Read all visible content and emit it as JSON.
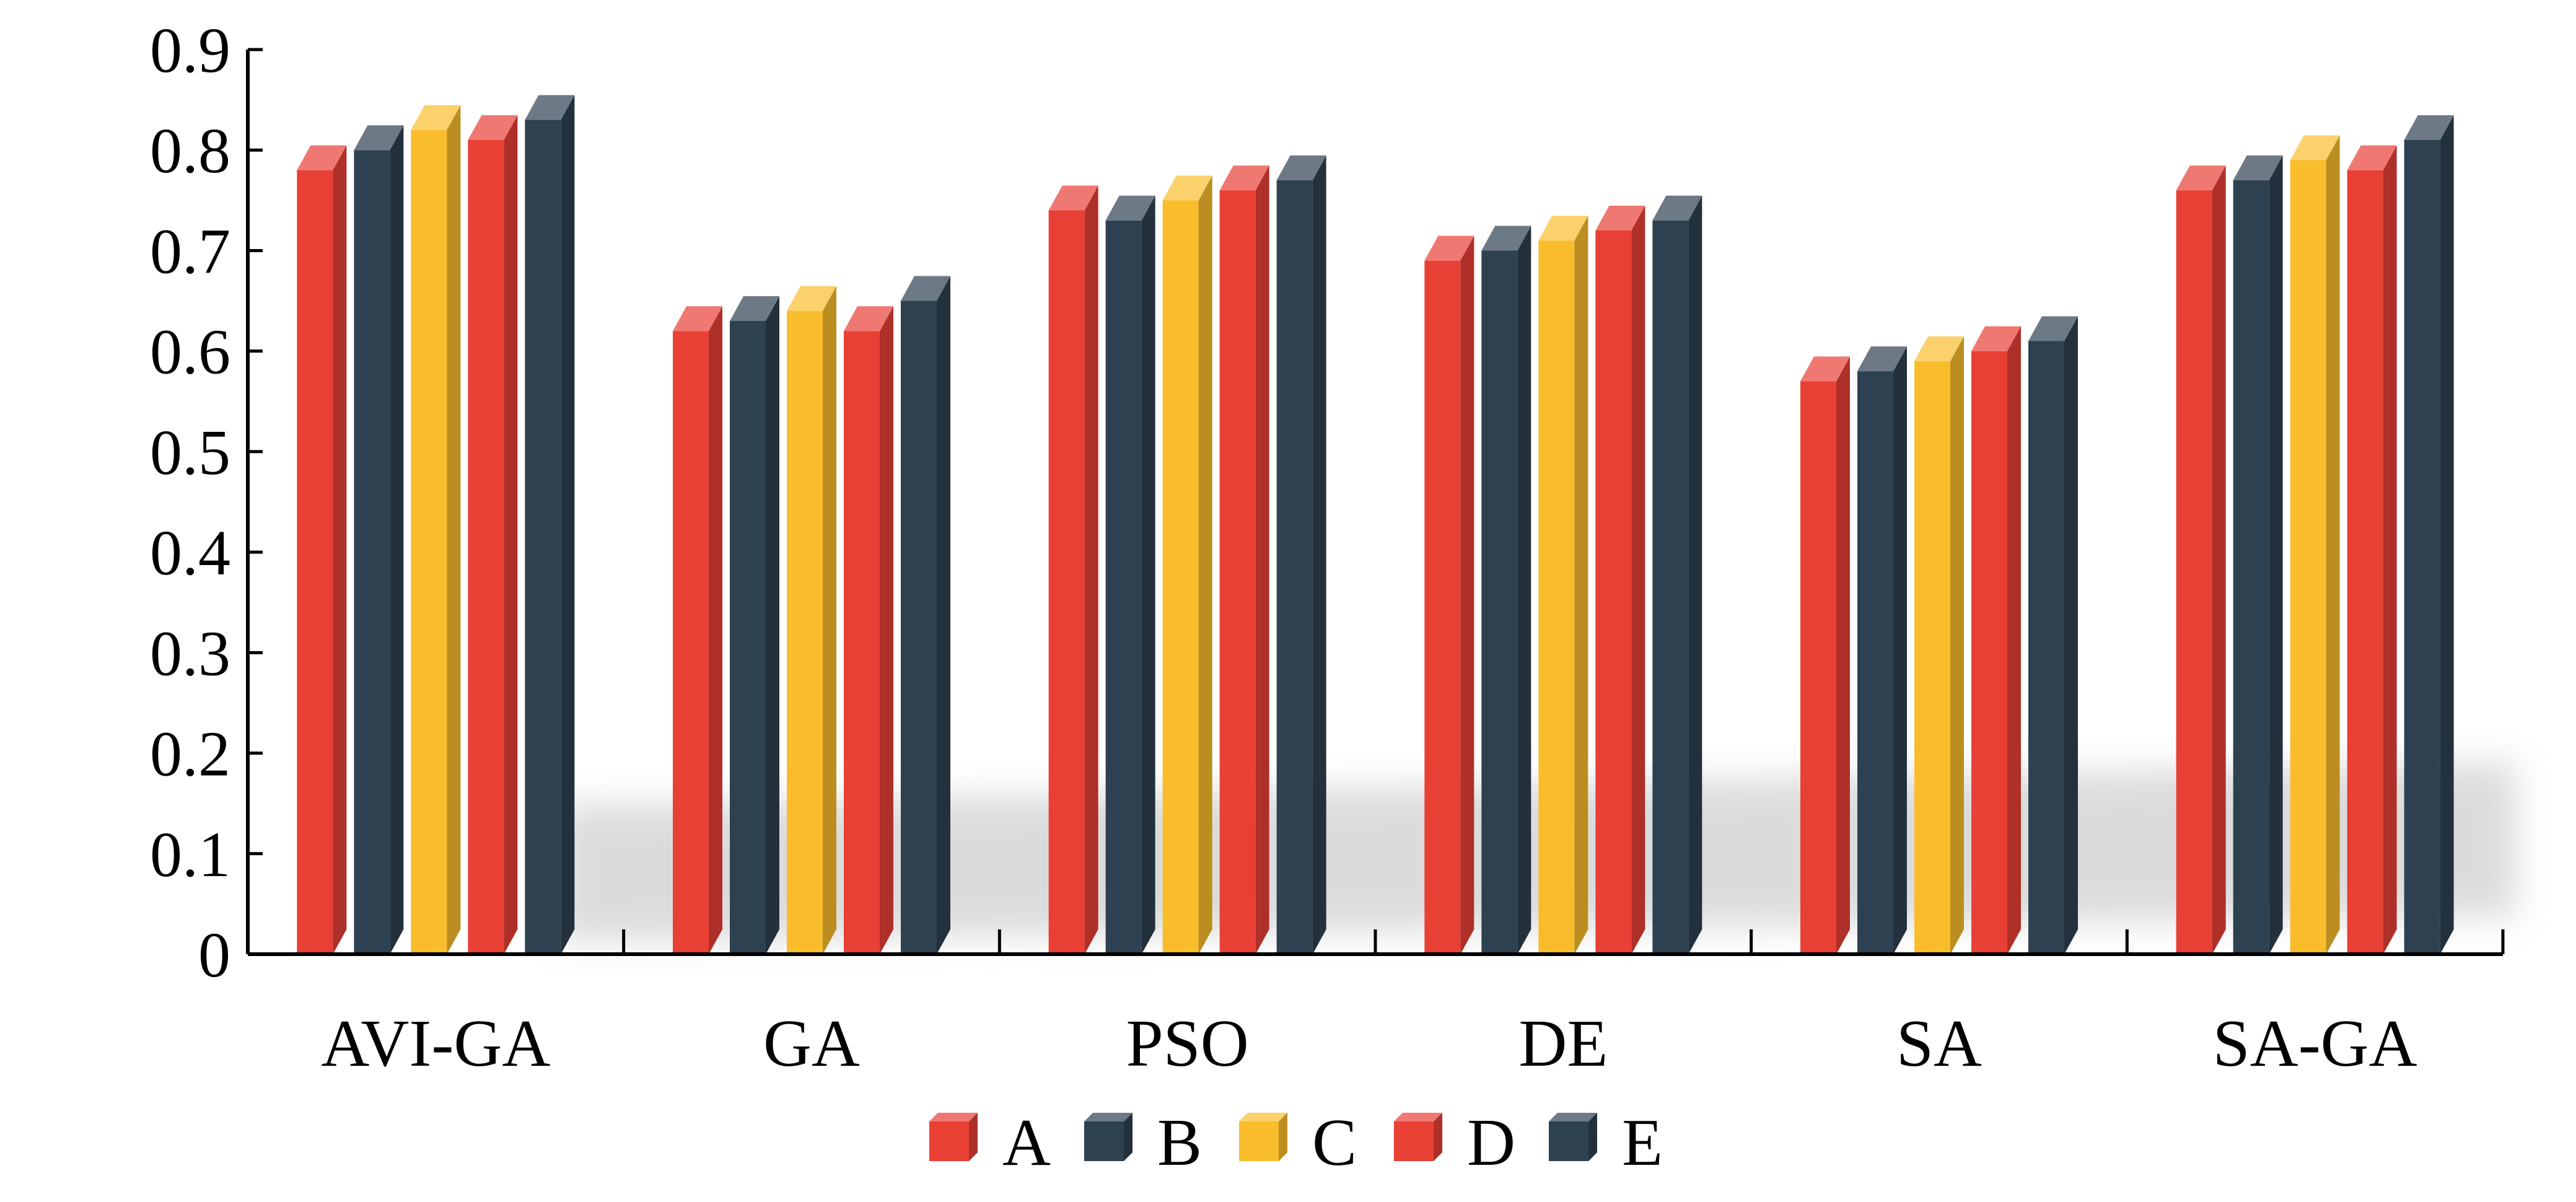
{
  "chart_data": {
    "type": "bar",
    "title": "",
    "xlabel": "",
    "ylabel": "",
    "ylim": [
      0,
      0.9
    ],
    "yticks": [
      "0",
      "0.1",
      "0.2",
      "0.3",
      "0.4",
      "0.5",
      "0.6",
      "0.7",
      "0.8",
      "0.9"
    ],
    "categories": [
      "AVI-GA",
      "GA",
      "PSO",
      "DE",
      "SA",
      "SA-GA"
    ],
    "series": [
      {
        "name": "A",
        "color": "#e84035",
        "values": [
          0.78,
          0.62,
          0.74,
          0.69,
          0.57,
          0.76
        ]
      },
      {
        "name": "B",
        "color": "#2e4150",
        "values": [
          0.8,
          0.63,
          0.73,
          0.7,
          0.58,
          0.77
        ]
      },
      {
        "name": "C",
        "color": "#f9bd2c",
        "values": [
          0.82,
          0.64,
          0.75,
          0.71,
          0.59,
          0.79
        ]
      },
      {
        "name": "D",
        "color": "#e84035",
        "values": [
          0.81,
          0.62,
          0.76,
          0.72,
          0.6,
          0.78
        ]
      },
      {
        "name": "E",
        "color": "#2e4150",
        "values": [
          0.83,
          0.65,
          0.77,
          0.73,
          0.61,
          0.81
        ]
      }
    ],
    "legend_position": "bottom",
    "grid": false,
    "style": "3d-bars"
  }
}
